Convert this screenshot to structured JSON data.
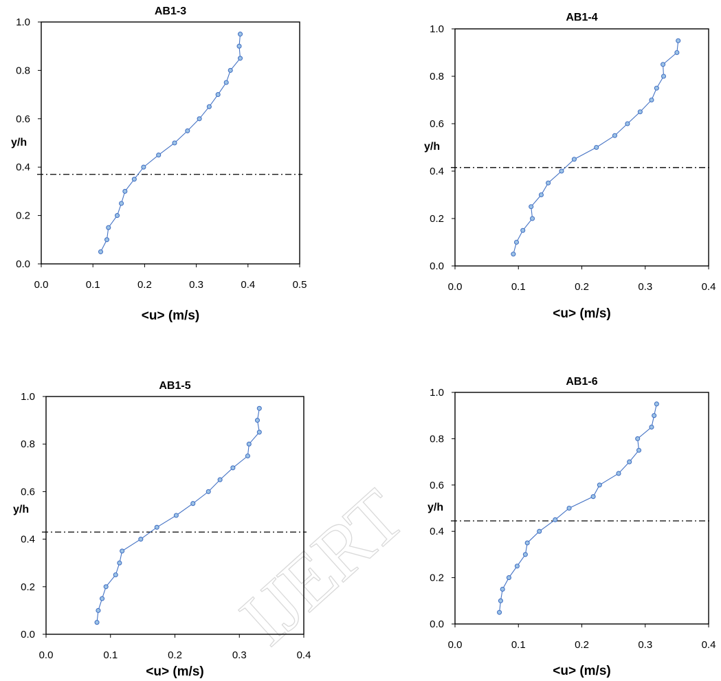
{
  "watermark": "IJERT",
  "colors": {
    "series": "#4472c4",
    "marker_fill": "#9dc3e6",
    "axes": "#000000",
    "reference_line": "#000000"
  },
  "chart_data": [
    {
      "type": "scatter",
      "title": "AB1-3",
      "xlabel": "<u> (m/s)",
      "ylabel": "y/h",
      "xlim": [
        0,
        0.5
      ],
      "ylim": [
        0,
        1
      ],
      "xticks": [
        "0.0",
        "0.1",
        "0.2",
        "0.3",
        "0.4",
        "0.5"
      ],
      "yticks": [
        "0.0",
        "0.2",
        "0.4",
        "0.6",
        "0.8",
        "1.0"
      ],
      "grid": false,
      "reference_line_y": 0.37,
      "series": [
        {
          "x": [
            0.115,
            0.127,
            0.13,
            0.147,
            0.155,
            0.162,
            0.18,
            0.198,
            0.227,
            0.258,
            0.283,
            0.306,
            0.325,
            0.342,
            0.358,
            0.366,
            0.385,
            0.383,
            0.385
          ],
          "y": [
            0.05,
            0.1,
            0.15,
            0.2,
            0.25,
            0.3,
            0.35,
            0.4,
            0.45,
            0.5,
            0.55,
            0.6,
            0.65,
            0.7,
            0.75,
            0.8,
            0.85,
            0.9,
            0.95
          ]
        }
      ]
    },
    {
      "type": "scatter",
      "title": "AB1-4",
      "xlabel": "<u> (m/s)",
      "ylabel": "y/h",
      "xlim": [
        0,
        0.4
      ],
      "ylim": [
        0,
        1
      ],
      "xticks": [
        "0.0",
        "0.1",
        "0.2",
        "0.3",
        "0.4"
      ],
      "yticks": [
        "0.0",
        "0.2",
        "0.4",
        "0.6",
        "0.8",
        "1.0"
      ],
      "grid": false,
      "reference_line_y": 0.415,
      "series": [
        {
          "x": [
            0.092,
            0.097,
            0.107,
            0.122,
            0.12,
            0.136,
            0.147,
            0.168,
            0.188,
            0.223,
            0.252,
            0.272,
            0.292,
            0.31,
            0.318,
            0.329,
            0.328,
            0.35,
            0.352
          ],
          "y": [
            0.05,
            0.1,
            0.15,
            0.2,
            0.25,
            0.3,
            0.35,
            0.4,
            0.45,
            0.5,
            0.55,
            0.6,
            0.65,
            0.7,
            0.75,
            0.8,
            0.85,
            0.9,
            0.95
          ]
        }
      ]
    },
    {
      "type": "scatter",
      "title": "AB1-5",
      "xlabel": "<u> (m/s)",
      "ylabel": "y/h",
      "xlim": [
        0,
        0.4
      ],
      "ylim": [
        0,
        1
      ],
      "xticks": [
        "0.0",
        "0.1",
        "0.2",
        "0.3",
        "0.4"
      ],
      "yticks": [
        "0.0",
        "0.2",
        "0.4",
        "0.6",
        "0.8",
        "1.0"
      ],
      "grid": false,
      "reference_line_y": 0.43,
      "series": [
        {
          "x": [
            0.079,
            0.081,
            0.087,
            0.093,
            0.108,
            0.114,
            0.118,
            0.147,
            0.172,
            0.202,
            0.228,
            0.252,
            0.27,
            0.29,
            0.313,
            0.315,
            0.331,
            0.328,
            0.331
          ],
          "y": [
            0.05,
            0.1,
            0.15,
            0.2,
            0.25,
            0.3,
            0.35,
            0.4,
            0.45,
            0.5,
            0.55,
            0.6,
            0.65,
            0.7,
            0.75,
            0.8,
            0.85,
            0.9,
            0.95
          ]
        }
      ]
    },
    {
      "type": "scatter",
      "title": "AB1-6",
      "xlabel": "<u> (m/s)",
      "ylabel": "y/h",
      "xlim": [
        0,
        0.4
      ],
      "ylim": [
        0,
        1
      ],
      "xticks": [
        "0.0",
        "0.1",
        "0.2",
        "0.3",
        "0.4"
      ],
      "yticks": [
        "0.0",
        "0.2",
        "0.4",
        "0.6",
        "0.8",
        "1.0"
      ],
      "grid": false,
      "reference_line_y": 0.445,
      "series": [
        {
          "x": [
            0.07,
            0.072,
            0.075,
            0.085,
            0.098,
            0.111,
            0.114,
            0.133,
            0.158,
            0.18,
            0.218,
            0.228,
            0.258,
            0.275,
            0.29,
            0.288,
            0.31,
            0.314,
            0.318
          ],
          "y": [
            0.05,
            0.1,
            0.15,
            0.2,
            0.25,
            0.3,
            0.35,
            0.4,
            0.45,
            0.5,
            0.55,
            0.6,
            0.65,
            0.7,
            0.75,
            0.8,
            0.85,
            0.9,
            0.95
          ]
        }
      ]
    }
  ]
}
